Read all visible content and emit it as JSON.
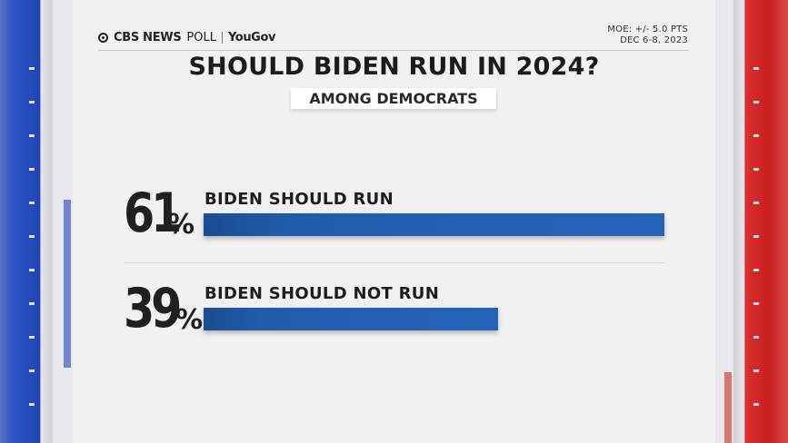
{
  "header": {
    "brand_cbs": "CBS NEWS",
    "brand_poll": "POLL",
    "brand_yougov": "YouGov",
    "moe": "MOE: +/- 5.0 PTS",
    "dates": "DEC 6-8, 2023"
  },
  "colors": {
    "bar": "#2563bb",
    "left_stripe": "#1e44b5",
    "right_stripe": "#c8201f"
  },
  "chart_data": {
    "type": "bar",
    "orientation": "horizontal",
    "title": "SHOULD BIDEN RUN IN 2024?",
    "subtitle": "AMONG DEMOCRATS",
    "unit": "%",
    "categories": [
      "BIDEN SHOULD RUN",
      "BIDEN SHOULD NOT RUN"
    ],
    "values": [
      61,
      39
    ],
    "value_labels": [
      "61",
      "39"
    ],
    "xlim": [
      0,
      61
    ]
  }
}
